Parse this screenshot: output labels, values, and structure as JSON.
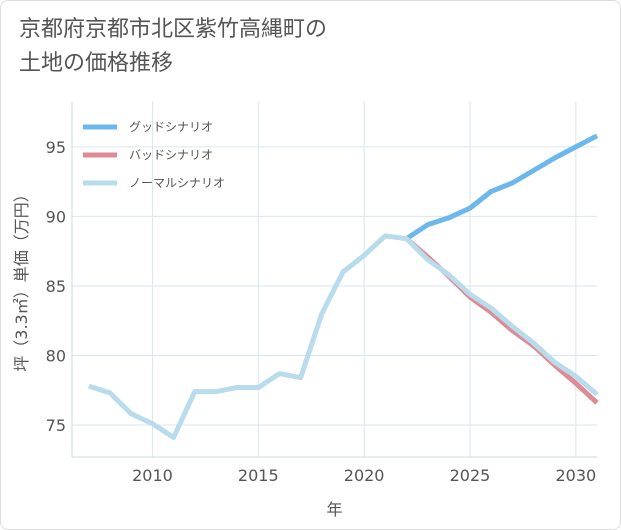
{
  "title_lines": [
    "京都府京都市北区紫竹高縄町の",
    "土地の価格推移"
  ],
  "chart_data": {
    "type": "line",
    "title": "京都府京都市北区紫竹高縄町の土地の価格推移",
    "xlabel": "年",
    "ylabel": "坪（3.3㎡）単価（万円）",
    "xlim": [
      2006.2,
      2031
    ],
    "ylim": [
      72.7,
      98.3
    ],
    "x_ticks": [
      2010,
      2015,
      2020,
      2025,
      2030
    ],
    "y_ticks": [
      75,
      80,
      85,
      90,
      95
    ],
    "grid": true,
    "legend_position": "top-left",
    "series": [
      {
        "name": "グッドシナリオ",
        "color": "#6cb8ec",
        "x": [
          2022,
          2023,
          2024,
          2025,
          2026,
          2027,
          2028,
          2029,
          2030,
          2031
        ],
        "y": [
          88.4,
          89.4,
          89.9,
          90.6,
          91.8,
          92.4,
          93.3,
          94.2,
          95.0,
          95.8
        ]
      },
      {
        "name": "バッドシナリオ",
        "color": "#dd8b95",
        "x": [
          2022,
          2023,
          2024,
          2025,
          2026,
          2027,
          2028,
          2029,
          2030,
          2031
        ],
        "y": [
          88.4,
          87.1,
          85.7,
          84.2,
          83.1,
          81.8,
          80.7,
          79.3,
          78.0,
          76.6
        ]
      },
      {
        "name": "ノーマルシナリオ",
        "color": "#b8dcec",
        "x": [
          2007,
          2008,
          2009,
          2010,
          2011,
          2012,
          2013,
          2014,
          2015,
          2016,
          2017,
          2018,
          2019,
          2020,
          2021,
          2022,
          2023,
          2024,
          2025,
          2026,
          2027,
          2028,
          2029,
          2030,
          2031
        ],
        "y": [
          77.8,
          77.3,
          75.8,
          75.1,
          74.1,
          77.4,
          77.4,
          77.7,
          77.7,
          78.7,
          78.4,
          83.0,
          86.0,
          87.2,
          88.6,
          88.4,
          86.9,
          85.8,
          84.4,
          83.4,
          82.1,
          80.9,
          79.5,
          78.5,
          77.2
        ]
      }
    ]
  }
}
